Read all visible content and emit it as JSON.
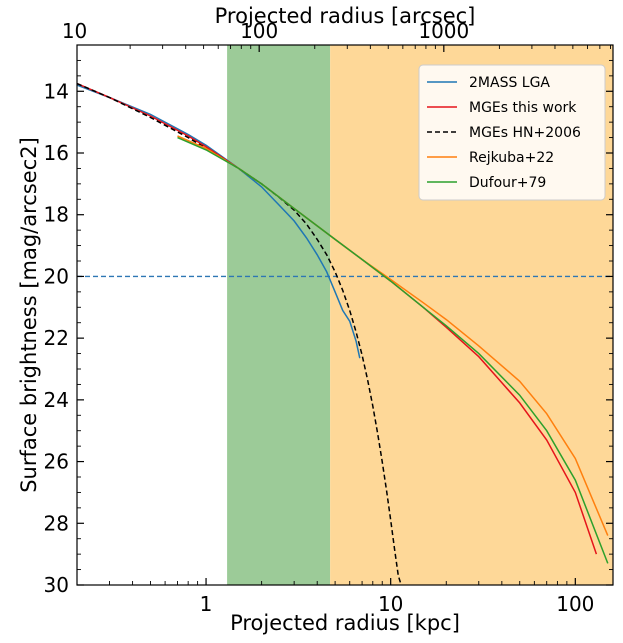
{
  "chart_data": {
    "type": "line",
    "xlabel": "Projected radius [kpc]",
    "ylabel": "Surface brightness [mag/arcsec2]",
    "x2label": "Projected radius [arcsec]",
    "xscale": "log",
    "x2scale": "log",
    "xlim": [
      0.2,
      160
    ],
    "ylim": [
      30,
      12.5
    ],
    "y_inverted": true,
    "arcsec_per_kpc": 51.55,
    "x_ticks": [
      {
        "value": 1,
        "label": "1"
      },
      {
        "value": 10,
        "label": "10"
      },
      {
        "value": 100,
        "label": "100"
      }
    ],
    "x2_ticks": [
      {
        "value": 10,
        "label": "10"
      },
      {
        "value": 100,
        "label": "100"
      },
      {
        "value": 1000,
        "label": "1000"
      }
    ],
    "y_ticks": [
      {
        "value": 14,
        "label": "14"
      },
      {
        "value": 16,
        "label": "16"
      },
      {
        "value": 18,
        "label": "18"
      },
      {
        "value": 20,
        "label": "20"
      },
      {
        "value": 22,
        "label": "22"
      },
      {
        "value": 24,
        "label": "24"
      },
      {
        "value": 26,
        "label": "26"
      },
      {
        "value": 28,
        "label": "28"
      },
      {
        "value": 30,
        "label": "30"
      }
    ],
    "shaded_regions": [
      {
        "x_start": 1.3,
        "x_end": 4.7,
        "color": "#9ccb98"
      },
      {
        "x_start": 4.7,
        "x_end": 160,
        "color": "#fed898"
      }
    ],
    "reference_lines": [
      {
        "y": 20,
        "color": "#2e77b4",
        "style": "dashed"
      }
    ],
    "legend_position": "top-right",
    "series": [
      {
        "name": "2MASS LGA",
        "color": "#1f77b4",
        "style": "solid",
        "x": [
          0.2,
          0.3,
          0.5,
          0.8,
          1.0,
          1.5,
          2.0,
          2.5,
          3.0,
          3.5,
          4.0,
          4.5,
          5.0,
          5.5,
          6.0,
          6.5,
          6.8
        ],
        "y": [
          13.8,
          14.2,
          14.75,
          15.4,
          15.75,
          16.5,
          17.1,
          17.7,
          18.2,
          18.75,
          19.3,
          19.85,
          20.5,
          21.1,
          21.45,
          22.1,
          22.65
        ]
      },
      {
        "name": "MGEs this work",
        "color": "#e5141b",
        "style": "solid",
        "x": [
          0.2,
          0.3,
          0.5,
          0.8,
          1.0,
          1.5,
          2.0,
          3.0,
          5.0,
          7.0,
          10,
          15,
          20,
          30,
          50,
          70,
          100,
          130
        ],
        "y": [
          13.75,
          14.2,
          14.8,
          15.45,
          15.8,
          16.5,
          17.0,
          17.8,
          18.8,
          19.45,
          20.15,
          21.0,
          21.65,
          22.6,
          24.1,
          25.3,
          27.0,
          29.0
        ]
      },
      {
        "name": "MGEs HN+2006",
        "color": "#000000",
        "style": "dashed",
        "x": [
          0.2,
          0.3,
          0.5,
          0.8,
          1.0,
          1.5,
          2.0,
          2.5,
          3.0,
          3.5,
          4.0,
          4.5,
          5.0,
          5.5,
          6.0,
          6.5,
          7.0,
          7.5,
          8.0,
          8.5,
          9.0,
          9.5,
          10.0,
          10.5,
          11.0,
          11.4
        ],
        "y": [
          13.75,
          14.2,
          14.85,
          15.5,
          15.85,
          16.5,
          17.0,
          17.45,
          17.85,
          18.3,
          18.8,
          19.3,
          19.85,
          20.45,
          21.1,
          21.8,
          22.55,
          23.35,
          24.2,
          25.1,
          26.0,
          26.95,
          27.9,
          28.85,
          29.7,
          30.0
        ]
      },
      {
        "name": "Rejkuba+22",
        "color": "#ff7f0e",
        "style": "solid",
        "x": [
          0.7,
          1.0,
          1.5,
          2.0,
          3.0,
          5.0,
          7.0,
          10,
          15,
          20,
          30,
          50,
          70,
          100,
          150
        ],
        "y": [
          15.45,
          15.85,
          16.5,
          17.0,
          17.8,
          18.8,
          19.45,
          20.1,
          20.85,
          21.4,
          22.25,
          23.4,
          24.45,
          25.9,
          28.4
        ]
      },
      {
        "name": "Dufour+79",
        "color": "#2ca02c",
        "style": "solid",
        "x": [
          0.7,
          1.0,
          1.5,
          2.0,
          3.0,
          5.0,
          7.0,
          10,
          15,
          20,
          30,
          50,
          70,
          100,
          150
        ],
        "y": [
          15.5,
          15.9,
          16.5,
          17.0,
          17.8,
          18.8,
          19.45,
          20.15,
          21.0,
          21.6,
          22.5,
          23.85,
          25.0,
          26.6,
          29.3
        ]
      }
    ]
  }
}
